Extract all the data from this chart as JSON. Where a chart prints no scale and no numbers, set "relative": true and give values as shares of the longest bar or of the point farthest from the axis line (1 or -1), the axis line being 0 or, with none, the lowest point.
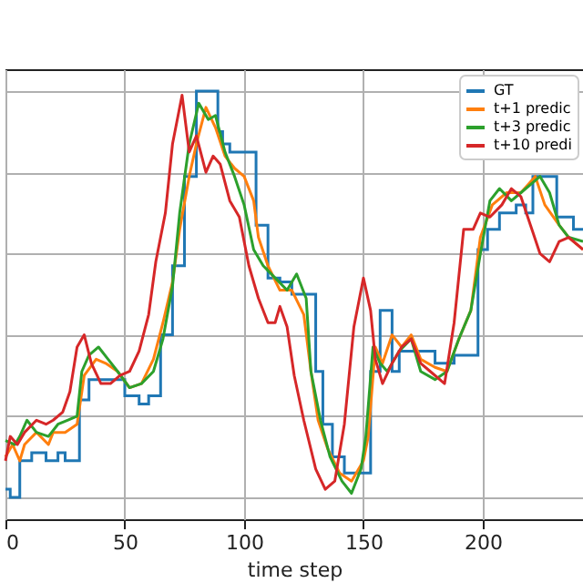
{
  "chart_data": {
    "type": "line",
    "relative": true,
    "xlabel": "time step",
    "xlim": [
      0,
      242
    ],
    "xticks": [
      0,
      50,
      100,
      150,
      200
    ],
    "grid": true,
    "legend": "top right",
    "line_style": "solid",
    "marker": "none",
    "series": [
      {
        "name": "GT",
        "type": "step",
        "color": "#1f77b4",
        "x": [
          0,
          2,
          6,
          11,
          17,
          22,
          25,
          31,
          35,
          50,
          56,
          60,
          65,
          70,
          75,
          80,
          89,
          91,
          94,
          105,
          110,
          115,
          120,
          130,
          133,
          137,
          142,
          153,
          157,
          162,
          165,
          180,
          188,
          198,
          202,
          207,
          214,
          218,
          221,
          231,
          238,
          242
        ],
        "values": [
          0.02,
          0,
          0.09,
          0.11,
          0.09,
          0.11,
          0.09,
          0.24,
          0.29,
          0.25,
          0.23,
          0.25,
          0.4,
          0.57,
          0.79,
          1.0,
          0.9,
          0.87,
          0.85,
          0.67,
          0.54,
          0.53,
          0.5,
          0.31,
          0.18,
          0.1,
          0.06,
          0.31,
          0.46,
          0.31,
          0.36,
          0.33,
          0.35,
          0.61,
          0.66,
          0.7,
          0.72,
          0.7,
          0.79,
          0.69,
          0.66,
          0.66
        ]
      },
      {
        "name": "t+1 predic",
        "type": "line",
        "color": "#ff7f0e",
        "x": [
          0,
          3,
          6,
          8,
          13,
          18,
          20,
          25,
          30,
          33,
          38,
          42,
          47,
          52,
          57,
          62,
          66,
          70,
          73,
          77,
          80,
          84,
          88,
          92,
          96,
          100,
          104,
          106,
          110,
          115,
          120,
          125,
          128,
          131,
          135,
          140,
          145,
          150,
          152,
          155,
          158,
          162,
          166,
          170,
          174,
          180,
          185,
          190,
          195,
          199,
          204,
          210,
          216,
          222,
          226,
          232,
          236,
          242
        ],
        "values": [
          0.1,
          0.13,
          0.09,
          0.13,
          0.16,
          0.13,
          0.16,
          0.16,
          0.18,
          0.3,
          0.34,
          0.33,
          0.31,
          0.27,
          0.28,
          0.34,
          0.43,
          0.53,
          0.66,
          0.79,
          0.87,
          0.96,
          0.91,
          0.84,
          0.81,
          0.79,
          0.73,
          0.64,
          0.57,
          0.51,
          0.51,
          0.45,
          0.31,
          0.19,
          0.12,
          0.06,
          0.04,
          0.09,
          0.15,
          0.37,
          0.33,
          0.4,
          0.37,
          0.4,
          0.34,
          0.32,
          0.31,
          0.39,
          0.46,
          0.64,
          0.72,
          0.75,
          0.75,
          0.79,
          0.72,
          0.67,
          0.64,
          0.61
        ]
      },
      {
        "name": "t+3 predic",
        "type": "line",
        "color": "#2ca02c",
        "x": [
          0,
          4,
          6,
          9,
          13,
          18,
          22,
          26,
          30,
          32,
          35,
          39,
          43,
          47,
          52,
          57,
          62,
          66,
          70,
          73,
          77,
          81,
          85,
          88,
          92,
          96,
          100,
          104,
          108,
          113,
          118,
          122,
          126,
          128,
          132,
          136,
          141,
          145,
          149,
          151,
          154,
          157,
          160,
          165,
          170,
          174,
          180,
          185,
          190,
          195,
          199,
          203,
          207,
          212,
          216,
          220,
          224,
          228,
          232,
          236,
          242
        ],
        "values": [
          0.14,
          0.13,
          0.15,
          0.19,
          0.16,
          0.15,
          0.18,
          0.19,
          0.2,
          0.31,
          0.35,
          0.37,
          0.34,
          0.31,
          0.27,
          0.28,
          0.31,
          0.39,
          0.52,
          0.7,
          0.87,
          0.97,
          0.93,
          0.94,
          0.85,
          0.79,
          0.72,
          0.61,
          0.57,
          0.54,
          0.51,
          0.55,
          0.49,
          0.31,
          0.19,
          0.1,
          0.04,
          0.01,
          0.07,
          0.15,
          0.37,
          0.33,
          0.31,
          0.36,
          0.39,
          0.31,
          0.29,
          0.31,
          0.39,
          0.46,
          0.6,
          0.73,
          0.76,
          0.73,
          0.75,
          0.77,
          0.79,
          0.75,
          0.67,
          0.64,
          0.63
        ]
      },
      {
        "name": "t+10 predi",
        "type": "line",
        "color": "#d62728",
        "x": [
          0,
          2,
          5,
          8,
          13,
          17,
          20,
          24,
          27,
          30,
          33,
          36,
          40,
          44,
          48,
          52,
          56,
          60,
          63,
          67,
          70,
          74,
          77,
          80,
          84,
          87,
          90,
          94,
          98,
          102,
          106,
          110,
          113,
          115,
          118,
          121,
          125,
          130,
          134,
          138,
          142,
          146,
          150,
          153,
          155,
          158,
          162,
          166,
          170,
          174,
          178,
          184,
          188,
          192,
          196,
          199,
          203,
          208,
          212,
          216,
          220,
          224,
          228,
          232,
          236,
          242
        ],
        "values": [
          0.09,
          0.15,
          0.13,
          0.16,
          0.19,
          0.18,
          0.19,
          0.21,
          0.26,
          0.37,
          0.4,
          0.33,
          0.28,
          0.28,
          0.3,
          0.31,
          0.36,
          0.45,
          0.58,
          0.7,
          0.87,
          0.99,
          0.85,
          0.89,
          0.8,
          0.84,
          0.82,
          0.73,
          0.69,
          0.57,
          0.49,
          0.43,
          0.43,
          0.47,
          0.42,
          0.3,
          0.19,
          0.07,
          0.02,
          0.04,
          0.18,
          0.42,
          0.54,
          0.46,
          0.34,
          0.28,
          0.33,
          0.37,
          0.39,
          0.33,
          0.31,
          0.28,
          0.43,
          0.66,
          0.66,
          0.7,
          0.69,
          0.72,
          0.76,
          0.74,
          0.67,
          0.6,
          0.58,
          0.63,
          0.64,
          0.61
        ]
      }
    ]
  }
}
